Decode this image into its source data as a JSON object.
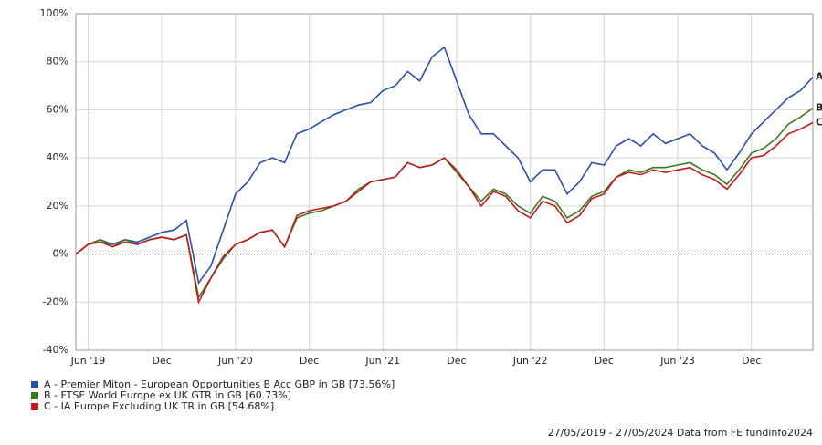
{
  "chart_data": {
    "type": "line",
    "x": [
      "2019-05",
      "2019-06",
      "2019-07",
      "2019-08",
      "2019-09",
      "2019-10",
      "2019-11",
      "2019-12",
      "2020-01",
      "2020-02",
      "2020-03",
      "2020-04",
      "2020-05",
      "2020-06",
      "2020-07",
      "2020-08",
      "2020-09",
      "2020-10",
      "2020-11",
      "2020-12",
      "2021-01",
      "2021-02",
      "2021-03",
      "2021-04",
      "2021-05",
      "2021-06",
      "2021-07",
      "2021-08",
      "2021-09",
      "2021-10",
      "2021-11",
      "2021-12",
      "2022-01",
      "2022-02",
      "2022-03",
      "2022-04",
      "2022-05",
      "2022-06",
      "2022-07",
      "2022-08",
      "2022-09",
      "2022-10",
      "2022-11",
      "2022-12",
      "2023-01",
      "2023-02",
      "2023-03",
      "2023-04",
      "2023-05",
      "2023-06",
      "2023-07",
      "2023-08",
      "2023-09",
      "2023-10",
      "2023-11",
      "2023-12",
      "2024-01",
      "2024-02",
      "2024-03",
      "2024-04",
      "2024-05"
    ],
    "xlim": [
      "2019-05",
      "2024-05"
    ],
    "xticks": [
      {
        "value": "2019-06",
        "label": "Jun '19"
      },
      {
        "value": "2019-12",
        "label": "Dec"
      },
      {
        "value": "2020-06",
        "label": "Jun '20"
      },
      {
        "value": "2020-12",
        "label": "Dec"
      },
      {
        "value": "2021-06",
        "label": "Jun '21"
      },
      {
        "value": "2021-12",
        "label": "Dec"
      },
      {
        "value": "2022-06",
        "label": "Jun '22"
      },
      {
        "value": "2022-12",
        "label": "Dec"
      },
      {
        "value": "2023-06",
        "label": "Jun '23"
      },
      {
        "value": "2023-12",
        "label": "Dec"
      }
    ],
    "ylim": [
      -40,
      100
    ],
    "yticks": [
      {
        "value": -40,
        "label": "-40%"
      },
      {
        "value": -20,
        "label": "-20%"
      },
      {
        "value": 0,
        "label": "0%"
      },
      {
        "value": 20,
        "label": "20%"
      },
      {
        "value": 40,
        "label": "40%"
      },
      {
        "value": 60,
        "label": "60%"
      },
      {
        "value": 80,
        "label": "80%"
      },
      {
        "value": 100,
        "label": "100%"
      }
    ],
    "grid": true,
    "series": [
      {
        "name": "A - Premier Miton - European Opportunities B Acc GBP in GB [73.56%]",
        "end_label": "A",
        "color": "#2b4fa8",
        "values": [
          0,
          4,
          6,
          4,
          6,
          5,
          7,
          9,
          10,
          14,
          -12,
          -5,
          10,
          25,
          30,
          38,
          40,
          38,
          50,
          52,
          55,
          58,
          60,
          62,
          63,
          68,
          70,
          76,
          72,
          82,
          86,
          72,
          58,
          50,
          50,
          45,
          40,
          30,
          35,
          35,
          25,
          30,
          38,
          37,
          45,
          48,
          45,
          50,
          46,
          48,
          50,
          45,
          42,
          35,
          42,
          50,
          55,
          60,
          65,
          68,
          73.56
        ]
      },
      {
        "name": "B - FTSE World Europe ex UK GTR in GB [60.73%]",
        "end_label": "B",
        "color": "#3a7a1e",
        "values": [
          0,
          4,
          6,
          3,
          6,
          4,
          6,
          7,
          6,
          8,
          -18,
          -10,
          -2,
          4,
          6,
          9,
          10,
          3,
          15,
          17,
          18,
          20,
          22,
          27,
          30,
          31,
          32,
          38,
          36,
          37,
          40,
          34,
          28,
          22,
          27,
          25,
          20,
          17,
          24,
          22,
          15,
          18,
          24,
          26,
          32,
          35,
          34,
          36,
          36,
          37,
          38,
          35,
          33,
          29,
          35,
          42,
          44,
          48,
          54,
          57,
          60.73
        ]
      },
      {
        "name": "C - IA Europe Excluding UK TR in GB [54.68%]",
        "end_label": "C",
        "color": "#c0181c",
        "values": [
          0,
          4,
          5,
          3,
          5,
          4,
          6,
          7,
          6,
          8,
          -20,
          -10,
          -1,
          4,
          6,
          9,
          10,
          3,
          16,
          18,
          19,
          20,
          22,
          26,
          30,
          31,
          32,
          38,
          36,
          37,
          40,
          35,
          28,
          20,
          26,
          24,
          18,
          15,
          22,
          20,
          13,
          16,
          23,
          25,
          32,
          34,
          33,
          35,
          34,
          35,
          36,
          33,
          31,
          27,
          33,
          40,
          41,
          45,
          50,
          52,
          54.68
        ]
      }
    ],
    "footer": "27/05/2019 - 27/05/2024 Data from FE fundinfo2024"
  }
}
